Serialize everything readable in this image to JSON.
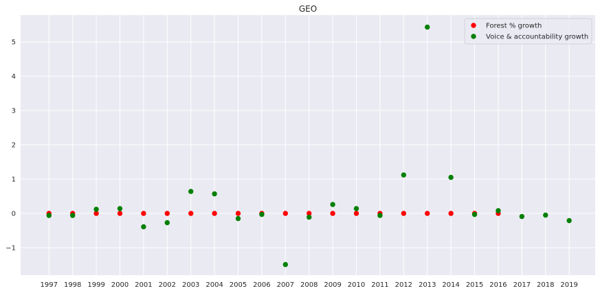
{
  "chart_data": {
    "type": "scatter",
    "title": "GEO",
    "xlabel": "",
    "ylabel": "",
    "x": [
      "1997",
      "1998",
      "1999",
      "2000",
      "2001",
      "2002",
      "2003",
      "2004",
      "2005",
      "2006",
      "2007",
      "2008",
      "2009",
      "2010",
      "2011",
      "2012",
      "2013",
      "2014",
      "2015",
      "2016",
      "2017",
      "2018",
      "2019"
    ],
    "xlim": [
      1995.8,
      2020.1
    ],
    "ylim": [
      -1.8,
      5.78
    ],
    "yticks": [
      -1,
      0,
      1,
      2,
      3,
      4,
      5
    ],
    "ytick_labels": [
      "−1",
      "0",
      "1",
      "2",
      "3",
      "4",
      "5"
    ],
    "grid": true,
    "background": "#eaeaf2",
    "grid_color": "#ffffff",
    "legend_position": "top-right",
    "series": [
      {
        "name": "Forest % growth",
        "color": "#ff0000",
        "points": [
          [
            1997,
            0.0
          ],
          [
            1998,
            0.0
          ],
          [
            1999,
            0.0
          ],
          [
            2000,
            0.0
          ],
          [
            2001,
            0.0
          ],
          [
            2002,
            0.0
          ],
          [
            2003,
            0.0
          ],
          [
            2004,
            0.0
          ],
          [
            2005,
            0.0
          ],
          [
            2006,
            0.0
          ],
          [
            2007,
            0.0
          ],
          [
            2008,
            0.0
          ],
          [
            2009,
            0.0
          ],
          [
            2010,
            0.0
          ],
          [
            2011,
            0.0
          ],
          [
            2012,
            0.0
          ],
          [
            2013,
            0.0
          ],
          [
            2014,
            0.0
          ],
          [
            2015,
            0.0
          ],
          [
            2016,
            0.0
          ]
        ]
      },
      {
        "name": "Voice & accountability growth",
        "color": "#008000",
        "points": [
          [
            1997,
            -0.06
          ],
          [
            1998,
            -0.06
          ],
          [
            1999,
            0.12
          ],
          [
            2000,
            0.14
          ],
          [
            2001,
            -0.39
          ],
          [
            2002,
            -0.27
          ],
          [
            2003,
            0.64
          ],
          [
            2004,
            0.57
          ],
          [
            2005,
            -0.15
          ],
          [
            2006,
            -0.03
          ],
          [
            2007,
            -1.49
          ],
          [
            2008,
            -0.11
          ],
          [
            2009,
            0.26
          ],
          [
            2010,
            0.14
          ],
          [
            2011,
            -0.06
          ],
          [
            2012,
            1.12
          ],
          [
            2013,
            5.43
          ],
          [
            2014,
            1.05
          ],
          [
            2015,
            -0.03
          ],
          [
            2016,
            0.08
          ],
          [
            2017,
            -0.09
          ],
          [
            2018,
            -0.05
          ],
          [
            2019,
            -0.21
          ]
        ]
      }
    ]
  }
}
